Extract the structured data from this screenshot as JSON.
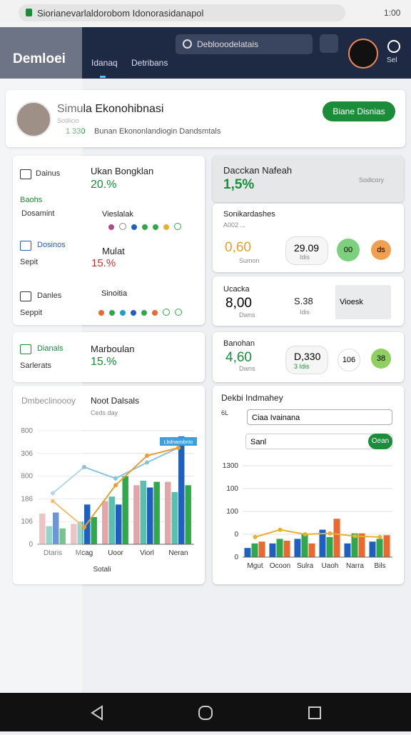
{
  "browser": {
    "url": "Siorianevarlaldorobom Idonorasidanapol",
    "time": "1:00"
  },
  "header": {
    "title": "Demloei",
    "tabs": [
      "Idanaq",
      "Detribans"
    ],
    "search": "Deblooodelatais",
    "user_label": "Sel"
  },
  "sidebar": [
    "Dainus",
    "Baohs",
    "Dosamint",
    "Dosinos",
    "Sepit",
    "Danles",
    "Seppit",
    "Dianals",
    "Sarlerats"
  ],
  "profile": {
    "name": "Simula Ekonohibnasi",
    "role": "Sotilicio",
    "stat": "1 330",
    "description": "Bunan Ekononlandiogin Dandsmtals",
    "button": "Biane Disnias"
  },
  "cards": {
    "ukan": {
      "title": "Ukan Bongklan",
      "value": "20.%"
    },
    "vies": {
      "title": "Vieslalak"
    },
    "mulat": {
      "title": "Mulat",
      "value": "15.%"
    },
    "sino": {
      "title": "Sinoitia"
    },
    "marb": {
      "title": "Marboulan",
      "value": "15.%"
    },
    "dacc": {
      "title": "Dacckan Nafeah",
      "value": "1,5%",
      "note": "Sodicory"
    },
    "soni": {
      "title": "Sonikardashes",
      "sub": "A002 ...",
      "value": "0,60",
      "value_note": "Sumon",
      "pill": "29.09",
      "pill_note": "Idis",
      "c1": "00",
      "c2": "ds"
    },
    "ucac": {
      "title": "Ucacka",
      "value": "8,00",
      "value_note": "Dwns",
      "mid": "S.38",
      "mid_note": "Idis",
      "box": "Vioesk"
    },
    "bano": {
      "title": "Banohan",
      "value": "4,60",
      "value_note": "Dwns",
      "pill": "D,330",
      "pill_note": "3 Idis",
      "c1": "106",
      "c2": "38"
    }
  },
  "left_chart": {
    "type": "bar",
    "title": "Dmbeclinoooy",
    "subtitle": "Noot Dalsals",
    "caption": "Ceds day",
    "xlabel": "Sotali",
    "annotation": "Lbdnaoobnto",
    "categories": [
      "Dtaris",
      "Mcag",
      "Uoor",
      "Viorl",
      "Neran"
    ],
    "series": [
      {
        "color": "#e3a5a8",
        "values": [
          270,
          180,
          380,
          520,
          550
        ]
      },
      {
        "color": "#5bbfb0",
        "values": [
          160,
          200,
          420,
          560,
          460
        ]
      },
      {
        "color": "#1f5fbf",
        "values": [
          280,
          350,
          350,
          500,
          950
        ]
      },
      {
        "color": "#2ea84a",
        "values": [
          140,
          240,
          600,
          550,
          520
        ]
      },
      {
        "type": "line",
        "color": "#8cc3dc",
        "values": [
          450,
          680,
          580,
          720,
          850
        ]
      },
      {
        "type": "line",
        "color": "#e8a030",
        "values": [
          380,
          150,
          520,
          780,
          850
        ]
      }
    ],
    "ylim": [
      0,
      1000
    ],
    "yticks": [
      0,
      {
        "value": 200,
        "label": "106"
      },
      {
        "value": 400,
        "label": "186"
      },
      {
        "value": 600,
        "label": "800"
      },
      {
        "value": 800,
        "label": "306"
      },
      {
        "value": 1000,
        "label": "800"
      }
    ]
  },
  "right_chart": {
    "type": "bar",
    "title": "Dekbi Indmahey",
    "side_label": "6L",
    "select": "Ciaa Ivainana",
    "input": "Sanl",
    "button": "Oean",
    "categories": [
      "Mgut",
      "Ocoon",
      "Sulra",
      "Uaoh",
      "Narra",
      "Bils"
    ],
    "series": [
      {
        "color": "#1f5fbf",
        "values": [
          100,
          150,
          200,
          300,
          150,
          170
        ]
      },
      {
        "color": "#2ea84a",
        "values": [
          150,
          200,
          250,
          220,
          260,
          200
        ]
      },
      {
        "color": "#e86a30",
        "values": [
          170,
          180,
          150,
          420,
          260,
          240
        ]
      },
      {
        "type": "line",
        "color": "#e8b030",
        "values": [
          220,
          300,
          250,
          260,
          230,
          220
        ]
      }
    ],
    "ylim": [
      0,
      1000
    ],
    "yticks": [
      0,
      {
        "value": 250,
        "label": "0"
      },
      {
        "value": 500,
        "label": "100"
      },
      {
        "value": 750,
        "label": "100"
      },
      {
        "value": 1000,
        "label": "1300"
      }
    ]
  }
}
